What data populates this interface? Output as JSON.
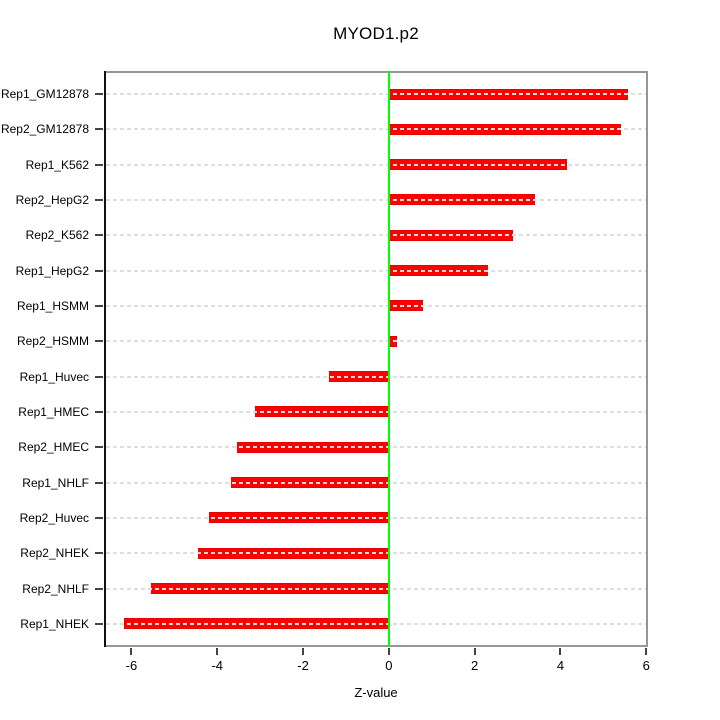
{
  "chart_data": {
    "type": "bar",
    "orientation": "horizontal",
    "title": "MYOD1.p2",
    "xlabel": "Z-value",
    "ylabel": "",
    "categories": [
      "Rep1_GM12878",
      "Rep2_GM12878",
      "Rep1_K562",
      "Rep2_HepG2",
      "Rep2_K562",
      "Rep1_HepG2",
      "Rep1_HSMM",
      "Rep2_HSMM",
      "Rep1_Huvec",
      "Rep1_HMEC",
      "Rep2_HMEC",
      "Rep1_NHLF",
      "Rep2_Huvec",
      "Rep2_NHEK",
      "Rep2_NHLF",
      "Rep1_NHEK"
    ],
    "values": [
      5.57,
      5.4,
      4.15,
      3.41,
      2.89,
      2.3,
      0.8,
      0.2,
      -1.4,
      -3.12,
      -3.55,
      -3.67,
      -4.2,
      -4.46,
      -5.55,
      -6.17
    ],
    "x_ticks": [
      -6,
      -4,
      -2,
      0,
      2,
      4,
      6
    ],
    "xlim": [
      -6.64,
      6.04
    ],
    "grid": "dashed-horizontal",
    "zero_line": true,
    "legend_position": "none",
    "colors": {
      "bar": "#ff0000",
      "zero_line": "#00ff00",
      "grid": "#dedede",
      "box": "#969696",
      "axis": "#111111",
      "text": "#000000"
    }
  }
}
